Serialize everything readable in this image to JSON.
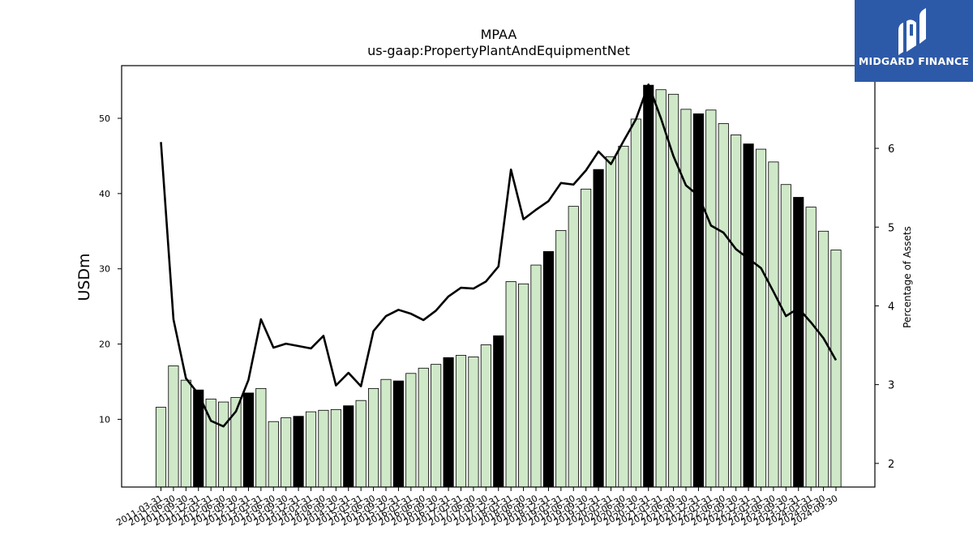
{
  "chart_data": {
    "type": "bar",
    "title": "MPAA",
    "subtitle": "us-gaap:PropertyPlantAndEquipmentNet",
    "ylabel": "USDm",
    "y2label": "Percentage of Assets",
    "ylim": [
      1,
      57
    ],
    "y2lim": [
      1.7,
      7.05
    ],
    "yticks": [
      10,
      20,
      30,
      40,
      50
    ],
    "y2ticks": [
      2,
      3,
      4,
      5,
      6
    ],
    "categories": [
      "2011-03-31",
      "2011-06-30",
      "2011-09-30",
      "2011-12-31",
      "2012-03-31",
      "2012-06-30",
      "2012-09-30",
      "2012-12-31",
      "2013-03-31",
      "2013-06-30",
      "2013-09-30",
      "2013-12-31",
      "2014-03-31",
      "2014-06-30",
      "2014-09-30",
      "2014-12-31",
      "2015-03-31",
      "2015-06-30",
      "2015-09-30",
      "2015-12-31",
      "2016-03-31",
      "2016-06-30",
      "2016-09-30",
      "2016-12-31",
      "2017-03-31",
      "2017-06-30",
      "2017-09-30",
      "2017-12-31",
      "2018-03-31",
      "2018-06-30",
      "2018-09-30",
      "2018-12-31",
      "2019-03-31",
      "2019-06-30",
      "2019-09-30",
      "2019-12-31",
      "2020-03-31",
      "2020-06-30",
      "2020-09-30",
      "2020-12-31",
      "2021-03-31",
      "2021-06-30",
      "2021-09-30",
      "2021-12-31",
      "2022-03-31",
      "2022-06-30",
      "2022-09-30",
      "2022-12-31",
      "2023-03-31",
      "2023-06-30",
      "2023-09-30",
      "2023-12-31",
      "2024-03-31",
      "2024-06-30",
      "2024-09-30"
    ],
    "xtick_labels": [
      "2011-03-31",
      "2011-06-30",
      "2011-09-30",
      "2011-12-31",
      "2012-03-31",
      "2012-06-30",
      "2012-09-30",
      "2012-12-31",
      "2013-03-31",
      "2013-06-30",
      "2013-09-30",
      "2013-12-31",
      "2014-03-31",
      "2014-06-30",
      "2014-09-30",
      "2014-12-31",
      "2015-03-31",
      "2015-06-30",
      "2015-09-30",
      "2015-12-31",
      "2016-03-31",
      "2016-06-30",
      "2016-09-30",
      "2016-12-31",
      "2017-03-31",
      "2017-06-30",
      "2017-09-30",
      "2017-12-31",
      "2018-03-31",
      "2018-06-30",
      "2018-09-30",
      "2018-12-31",
      "2019-03-31",
      "2019-06-30",
      "2019-09-30",
      "2019-12-31",
      "2020-03-31",
      "2020-06-30",
      "2020-09-30",
      "2020-12-31",
      "2021-03-31",
      "2021-06-30",
      "2021-09-30",
      "2021-12-31",
      "2022-03-31",
      "2022-06-30",
      "2022-09-30",
      "2022-12-31",
      "2023-03-31",
      "2023-06-30",
      "2023-09-30",
      "2023-12-31",
      "2024-03-31",
      "2024-06-30",
      "2024-09-30"
    ],
    "series": [
      {
        "values": [
          11.6,
          17.1,
          15.2,
          13.9,
          12.7,
          12.3,
          12.9,
          13.5,
          14.1,
          9.7,
          10.2,
          10.4,
          11.0,
          11.2,
          11.3,
          11.8,
          12.5,
          14.1,
          15.3,
          15.1,
          16.1,
          16.8,
          17.3,
          18.2,
          18.5,
          18.3,
          19.9,
          21.1,
          28.3,
          28.0,
          30.5,
          32.3,
          35.1,
          38.3,
          40.6,
          43.2,
          44.9,
          46.3,
          49.9,
          54.4,
          53.8,
          53.2,
          51.2,
          50.6,
          51.1,
          49.3,
          47.8,
          46.6,
          45.9,
          44.2,
          41.2,
          39.5,
          38.2,
          35.0,
          32.5
        ]
      },
      {
        "values": [
          6.08,
          3.83,
          3.08,
          2.88,
          2.54,
          2.47,
          2.66,
          3.06,
          3.83,
          3.47,
          3.52,
          3.49,
          3.46,
          3.62,
          2.99,
          3.15,
          2.98,
          3.68,
          3.87,
          3.95,
          3.9,
          3.82,
          3.94,
          4.12,
          4.23,
          4.22,
          4.31,
          4.5,
          5.73,
          5.1,
          5.22,
          5.33,
          5.56,
          5.54,
          5.72,
          5.96,
          5.8,
          6.09,
          6.37,
          6.81,
          6.38,
          5.9,
          5.53,
          5.4,
          5.02,
          4.93,
          4.72,
          4.6,
          4.48,
          4.18,
          3.87,
          3.97,
          3.79,
          3.59,
          3.31
        ]
      }
    ],
    "bar_colors": {
      "fill": "#cfe9c8",
      "highlight": "#000000",
      "edge": "#000000"
    },
    "line_color": "#000000",
    "grid": false
  },
  "logo": {
    "text": "MIDGARD FINANCE",
    "bg": "#2d5aa8"
  }
}
